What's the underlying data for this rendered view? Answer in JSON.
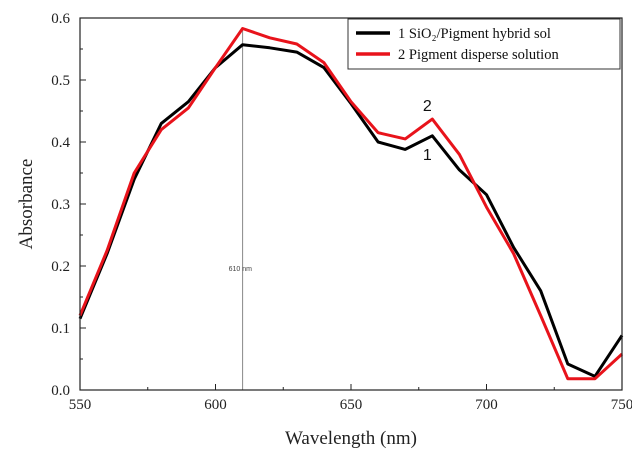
{
  "chart_data": {
    "type": "line",
    "title": "",
    "xlabel": "Wavelength (nm)",
    "ylabel": "Absorbance",
    "xlim": [
      550,
      750
    ],
    "ylim": [
      0.0,
      0.6
    ],
    "xticks": [
      "550",
      "600",
      "650",
      "700",
      "750"
    ],
    "yticks": [
      "0.0",
      "0.1",
      "0.2",
      "0.3",
      "0.4",
      "0.5",
      "0.6"
    ],
    "grid": false,
    "legend_position": "top-right",
    "series": [
      {
        "name": "1 SiO₂/Pigment hybrid sol",
        "color": "#000000",
        "curve_label": "1",
        "x": [
          550,
          560,
          570,
          580,
          590,
          600,
          610,
          620,
          630,
          640,
          650,
          660,
          670,
          680,
          690,
          700,
          710,
          720,
          730,
          740,
          750
        ],
        "y": [
          0.115,
          0.22,
          0.34,
          0.43,
          0.465,
          0.52,
          0.557,
          0.552,
          0.545,
          0.52,
          0.462,
          0.4,
          0.388,
          0.41,
          0.355,
          0.315,
          0.23,
          0.16,
          0.042,
          0.022,
          0.088
        ]
      },
      {
        "name": "2 Pigment disperse solution",
        "color": "#e8131b",
        "curve_label": "2",
        "x": [
          550,
          560,
          570,
          580,
          590,
          600,
          610,
          620,
          630,
          640,
          650,
          660,
          670,
          680,
          690,
          700,
          710,
          720,
          730,
          740,
          750
        ],
        "y": [
          0.12,
          0.225,
          0.35,
          0.42,
          0.455,
          0.52,
          0.583,
          0.568,
          0.558,
          0.528,
          0.465,
          0.415,
          0.405,
          0.437,
          0.38,
          0.295,
          0.22,
          0.12,
          0.018,
          0.018,
          0.058
        ]
      }
    ],
    "annotations": [
      {
        "type": "vline",
        "x": 610,
        "color": "#888888",
        "text": "610 nm"
      }
    ]
  }
}
